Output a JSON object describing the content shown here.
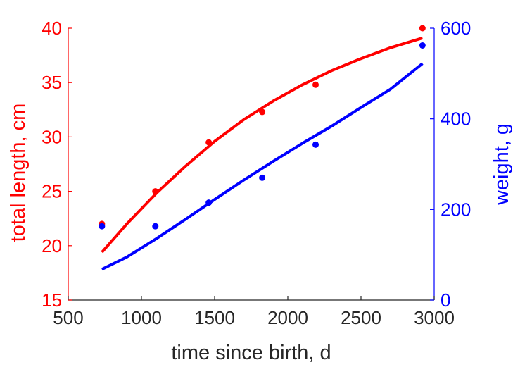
{
  "chart_data": {
    "type": "scatter",
    "title": "",
    "xlabel": "time since birth, d",
    "ylabel_left": "total length, cm",
    "ylabel_right": "weight, g",
    "xlim": [
      500,
      3000
    ],
    "ylim_left": [
      15,
      40
    ],
    "ylim_right": [
      0,
      600
    ],
    "x_ticks": [
      500,
      1000,
      1500,
      2000,
      2500,
      3000
    ],
    "y_left_ticks": [
      15,
      20,
      25,
      30,
      35,
      40
    ],
    "y_right_ticks": [
      0,
      200,
      400,
      600
    ],
    "grid": false,
    "colors": {
      "length": "#ff0000",
      "weight": "#0000ff",
      "axis": "#262626"
    },
    "series": [
      {
        "axis": "left",
        "color": "#ff0000",
        "observed": {
          "x": [
            730,
            1095,
            1460,
            1825,
            2190,
            2920
          ],
          "y": [
            22.0,
            25.0,
            29.5,
            32.3,
            34.8,
            40.0
          ]
        },
        "fitted": {
          "x": [
            730,
            900,
            1100,
            1300,
            1500,
            1700,
            1900,
            2100,
            2300,
            2500,
            2700,
            2920
          ],
          "y": [
            19.4,
            22.0,
            24.8,
            27.3,
            29.6,
            31.6,
            33.3,
            34.8,
            36.1,
            37.2,
            38.2,
            39.1
          ]
        }
      },
      {
        "axis": "right",
        "color": "#0000ff",
        "observed": {
          "x": [
            730,
            1095,
            1460,
            1825,
            2190,
            2920
          ],
          "y": [
            163,
            163,
            215,
            270,
            343,
            562
          ]
        },
        "fitted": {
          "x": [
            730,
            900,
            1100,
            1300,
            1500,
            1700,
            1900,
            2100,
            2300,
            2500,
            2700,
            2920
          ],
          "y": [
            68,
            95,
            135,
            178,
            222,
            265,
            306,
            346,
            384,
            425,
            465,
            522
          ]
        }
      }
    ]
  }
}
